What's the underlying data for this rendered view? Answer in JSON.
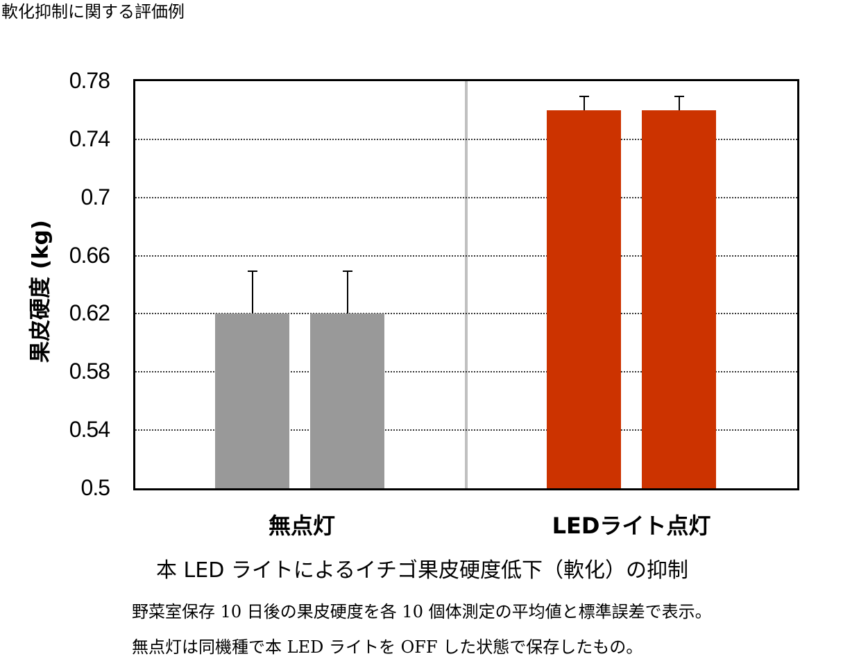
{
  "page": {
    "title": "軟化抑制に関する評価例",
    "caption": "本 LED ライトによるイチゴ果皮硬度低下（軟化）の抑制",
    "notes": [
      "野菜室保存 10 日後の果皮硬度を各 10 個体測定の平均値と標準誤差で表示。",
      "無点灯は同機種で本 LED ライトを OFF した状態で保存したもの。"
    ]
  },
  "chart_data": {
    "type": "bar",
    "title": "",
    "xlabel": "",
    "ylabel": "果皮硬度 (kg)",
    "ylim": [
      0.5,
      0.78
    ],
    "yticks": [
      "0.78",
      "0.74",
      "0.7",
      "0.66",
      "0.62",
      "0.58",
      "0.54",
      "0.5"
    ],
    "grid": true,
    "grid_style": "dotted",
    "legend": null,
    "categories": [
      "無点灯",
      "LEDライト点灯"
    ],
    "series": [
      {
        "name": "無点灯",
        "color": "#999999",
        "values": [
          0.62,
          0.62
        ],
        "error_upper": [
          0.03,
          0.03
        ]
      },
      {
        "name": "LEDライト点灯",
        "color": "#CC3300",
        "values": [
          0.76,
          0.76
        ],
        "error_upper": [
          0.01,
          0.01
        ]
      }
    ],
    "bars": [
      {
        "group": "無点灯",
        "value": 0.62,
        "error": 0.03,
        "color": "#999999"
      },
      {
        "group": "無点灯",
        "value": 0.62,
        "error": 0.03,
        "color": "#999999"
      },
      {
        "group": "LEDライト点灯",
        "value": 0.76,
        "error": 0.01,
        "color": "#CC3300"
      },
      {
        "group": "LEDライト点灯",
        "value": 0.76,
        "error": 0.01,
        "color": "#CC3300"
      }
    ],
    "divider_color": "#C0C0C0"
  }
}
